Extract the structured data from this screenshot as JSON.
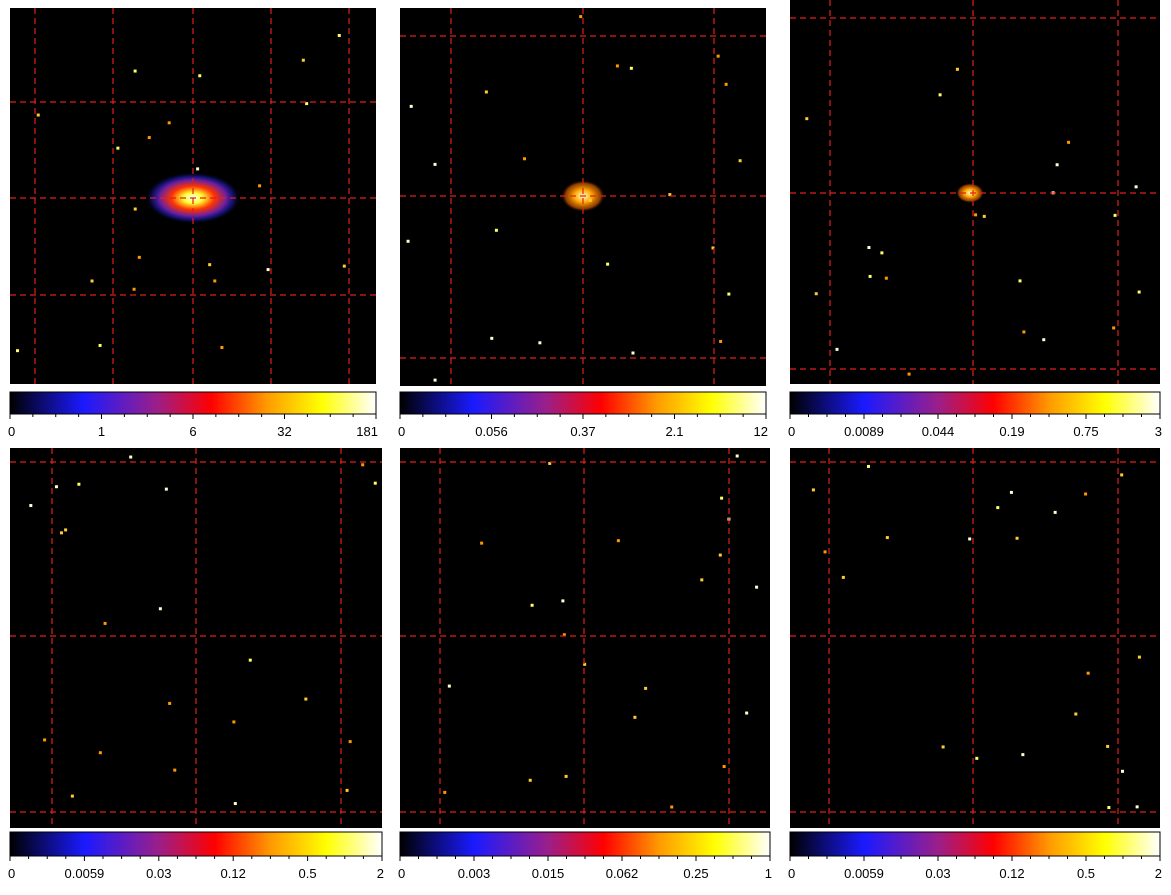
{
  "panels": [
    {
      "colorbar_labels": [
        "0",
        "1",
        "6",
        "32",
        "181"
      ]
    },
    {
      "colorbar_labels": [
        "0",
        "0.056",
        "0.37",
        "2.1",
        "12"
      ]
    },
    {
      "colorbar_labels": [
        "0",
        "0.0089",
        "0.044",
        "0.19",
        "0.75",
        "3"
      ]
    },
    {
      "colorbar_labels": [
        "0",
        "0.0059",
        "0.03",
        "0.12",
        "0.5",
        "2"
      ]
    },
    {
      "colorbar_labels": [
        "0",
        "0.003",
        "0.015",
        "0.062",
        "0.25",
        "1"
      ]
    },
    {
      "colorbar_labels": [
        "0",
        "0.0059",
        "0.03",
        "0.12",
        "0.5",
        "2"
      ]
    }
  ]
}
